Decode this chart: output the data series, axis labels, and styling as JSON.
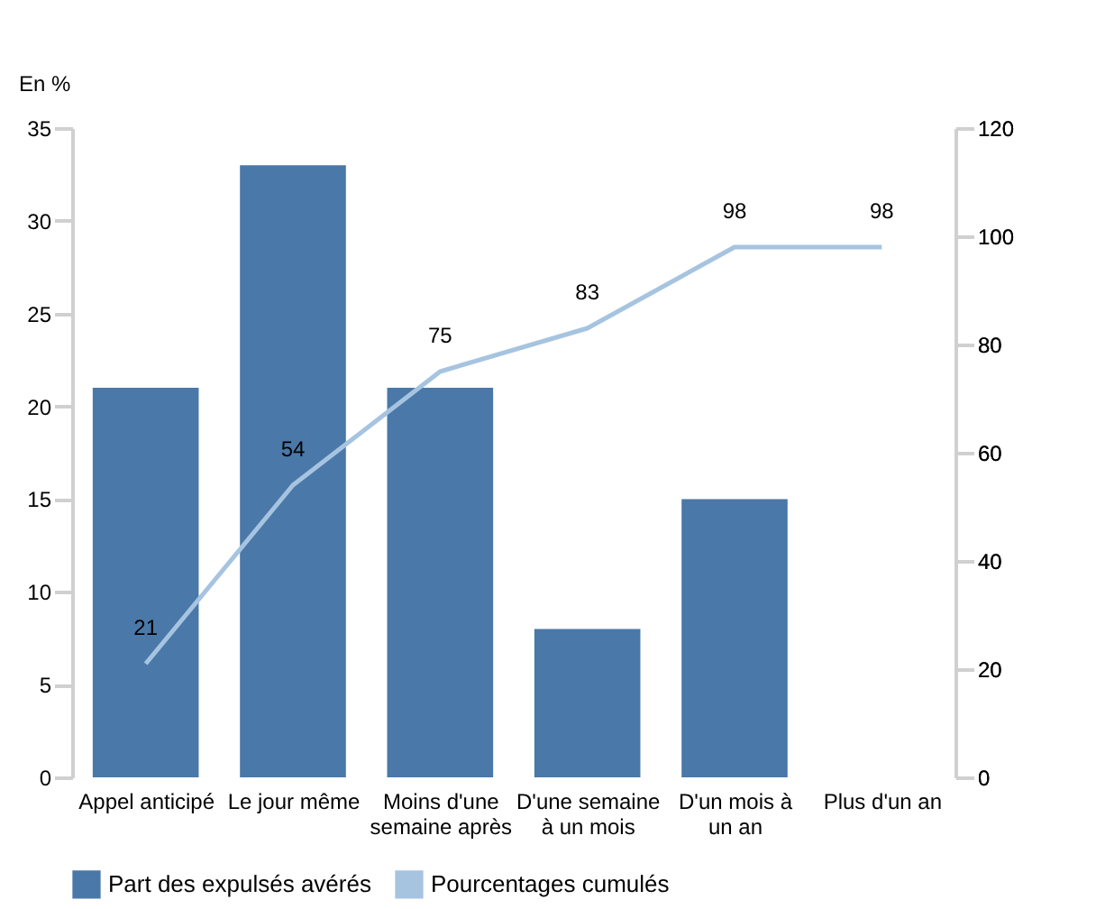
{
  "chart_data": {
    "type": "bar",
    "ylabel": "En %",
    "categories": [
      "Appel anticipé",
      "Le jour même",
      "Moins d'une semaine après",
      "D'une semaine à un mois",
      "D'un mois à un an",
      "Plus d'un an"
    ],
    "series": [
      {
        "name": "Part des expulsés avérés",
        "color": "#4a78a8",
        "values": [
          21,
          33,
          21,
          8,
          15,
          0
        ]
      },
      {
        "name": "Pourcentages cumulés",
        "type": "line",
        "axis": "y2",
        "color": "#a6c4e0",
        "values": [
          21,
          54,
          75,
          83,
          98,
          98
        ],
        "value_labels": [
          "21",
          "54",
          "75",
          "83",
          "98",
          "98"
        ]
      }
    ],
    "ylim": [
      0,
      35
    ],
    "yticks": [
      0,
      5,
      10,
      15,
      20,
      25,
      30,
      35
    ],
    "y2lim": [
      0,
      120
    ],
    "y2ticks": [
      0,
      20,
      40,
      60,
      80,
      100,
      120
    ],
    "grid": false,
    "legend": "bottom",
    "marker": "none",
    "line_style": "solid"
  }
}
